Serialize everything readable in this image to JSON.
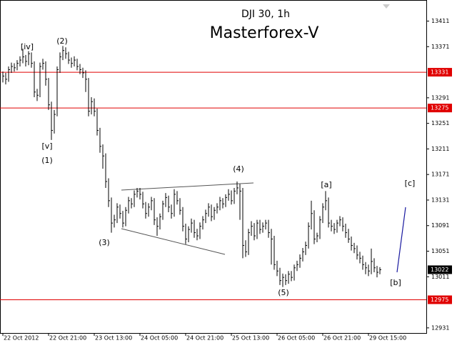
{
  "chart_data": {
    "type": "ohlc",
    "title": "DJI 30, 1h",
    "subtitle": "Masterforex-V",
    "subtitle_color": "#e00000",
    "bar_color": "#000000",
    "ylim": [
      12923,
      13444
    ],
    "yticks": [
      13411,
      13371,
      13291,
      13251,
      13211,
      13171,
      13131,
      13091,
      13051,
      13011,
      12931
    ],
    "xlim": [
      -1,
      148.25
    ],
    "xticks": [
      {
        "value": 0,
        "label": "22 Oct 2012"
      },
      {
        "value": 16,
        "label": "22 Oct 21:00"
      },
      {
        "value": 32,
        "label": "23 Oct 13:00"
      },
      {
        "value": 48,
        "label": "24 Oct 05:00"
      },
      {
        "value": 64,
        "label": "24 Oct 21:00"
      },
      {
        "value": 80,
        "label": "25 Oct 13:00"
      },
      {
        "value": 96,
        "label": "26 Oct 05:00"
      },
      {
        "value": 112,
        "label": "26 Oct 21:00"
      },
      {
        "value": 128,
        "label": "29 Oct 15:00"
      }
    ],
    "levels": [
      13331,
      13275,
      12975
    ],
    "level_color": "#e00000",
    "current_price": 13022,
    "annotations": [
      "[iv]",
      "(2)",
      "[v]",
      "(1)",
      "(3)",
      "(4)",
      "(5)",
      "[a]",
      "[b]",
      "[c]"
    ],
    "high": [
      13332,
      13330,
      13340,
      13346,
      13345,
      13350,
      13356,
      13368,
      13358,
      13364,
      13362,
      13348,
      13305,
      13346,
      13352,
      13348,
      13322,
      13285,
      13272,
      13340,
      13362,
      13372,
      13370,
      13363,
      13354,
      13356,
      13352,
      13344,
      13338,
      13334,
      13322,
      13292,
      13290,
      13274,
      13244,
      13218,
      13204,
      13165,
      13135,
      13108,
      13126,
      13124,
      13114,
      13120,
      13136,
      13134,
      13146,
      13150,
      13150,
      13144,
      13128,
      13126,
      13136,
      13134,
      13104,
      13110,
      13130,
      13142,
      13138,
      13124,
      13148,
      13145,
      13134,
      13120,
      13094,
      13090,
      13102,
      13100,
      13086,
      13096,
      13106,
      13116,
      13126,
      13124,
      13120,
      13126,
      13136,
      13134,
      13140,
      13148,
      13146,
      13150,
      13160,
      13156,
      13150,
      13068,
      13086,
      13098,
      13095,
      13100,
      13100,
      13096,
      13100,
      13100,
      13086,
      13075,
      13036,
      13025,
      13016,
      13015,
      13020,
      13020,
      13030,
      13036,
      13046,
      13056,
      13066,
      13096,
      13130,
      13115,
      13080,
      13106,
      13126,
      13145,
      13135,
      13100,
      13095,
      13100,
      13106,
      13104,
      13094,
      13086,
      13074,
      13064,
      13060,
      13050,
      13044,
      13034,
      13030,
      13055,
      13040,
      13028,
      13026
    ],
    "low": [
      13315,
      13312,
      13316,
      13330,
      13332,
      13334,
      13340,
      13345,
      13340,
      13342,
      13338,
      13292,
      13286,
      13292,
      13335,
      13310,
      13272,
      13225,
      13235,
      13262,
      13330,
      13350,
      13352,
      13344,
      13338,
      13340,
      13334,
      13328,
      13322,
      13300,
      13262,
      13265,
      13262,
      13232,
      13205,
      13180,
      13150,
      13120,
      13080,
      13088,
      13095,
      13102,
      13088,
      13090,
      13110,
      13118,
      13120,
      13135,
      13132,
      13118,
      13102,
      13105,
      13115,
      13092,
      13075,
      13085,
      13100,
      13120,
      13112,
      13102,
      13105,
      13124,
      13108,
      13082,
      13062,
      13065,
      13080,
      13072,
      13068,
      13070,
      13085,
      13095,
      13105,
      13098,
      13100,
      13110,
      13115,
      13118,
      13120,
      13130,
      13124,
      13125,
      13140,
      13100,
      13040,
      13042,
      13045,
      13075,
      13068,
      13070,
      13078,
      13080,
      13085,
      13072,
      13030,
      13022,
      13012,
      12998,
      12995,
      12998,
      13000,
      13004,
      13005,
      13020,
      13025,
      13035,
      13045,
      13055,
      13085,
      13062,
      13065,
      13070,
      13095,
      13115,
      13088,
      13082,
      13078,
      13080,
      13090,
      13082,
      13072,
      13064,
      13052,
      13048,
      13038,
      13032,
      13022,
      13015,
      13012,
      13015,
      13018,
      13010,
      13015
    ],
    "close": [
      13325,
      13320,
      13335,
      13340,
      13338,
      13345,
      13350,
      13355,
      13348,
      13360,
      13345,
      13300,
      13295,
      13340,
      13345,
      13320,
      13280,
      13240,
      13265,
      13335,
      13355,
      13365,
      13360,
      13350,
      13345,
      13350,
      13340,
      13335,
      13330,
      13320,
      13270,
      13285,
      13270,
      13240,
      13215,
      13200,
      13160,
      13130,
      13095,
      13100,
      13120,
      13110,
      13095,
      13115,
      13130,
      13125,
      13140,
      13145,
      13140,
      13125,
      13110,
      13120,
      13130,
      13100,
      13090,
      13105,
      13125,
      13135,
      13120,
      13110,
      13140,
      13130,
      13115,
      13090,
      13070,
      13085,
      13095,
      13080,
      13075,
      13090,
      13100,
      13110,
      13120,
      13105,
      13115,
      13120,
      13130,
      13125,
      13135,
      13140,
      13130,
      13145,
      13150,
      13145,
      13060,
      13050,
      13080,
      13090,
      13075,
      13095,
      13085,
      13090,
      13095,
      13080,
      13070,
      13030,
      13020,
      13005,
      13010,
      13005,
      13015,
      13010,
      13025,
      13030,
      13040,
      13050,
      13060,
      13090,
      13110,
      13070,
      13075,
      13100,
      13120,
      13130,
      13095,
      13090,
      13085,
      13095,
      13100,
      13090,
      13080,
      13070,
      13060,
      13055,
      13045,
      13040,
      13030,
      13025,
      13020,
      13035,
      13025,
      13018,
      13022
    ]
  }
}
